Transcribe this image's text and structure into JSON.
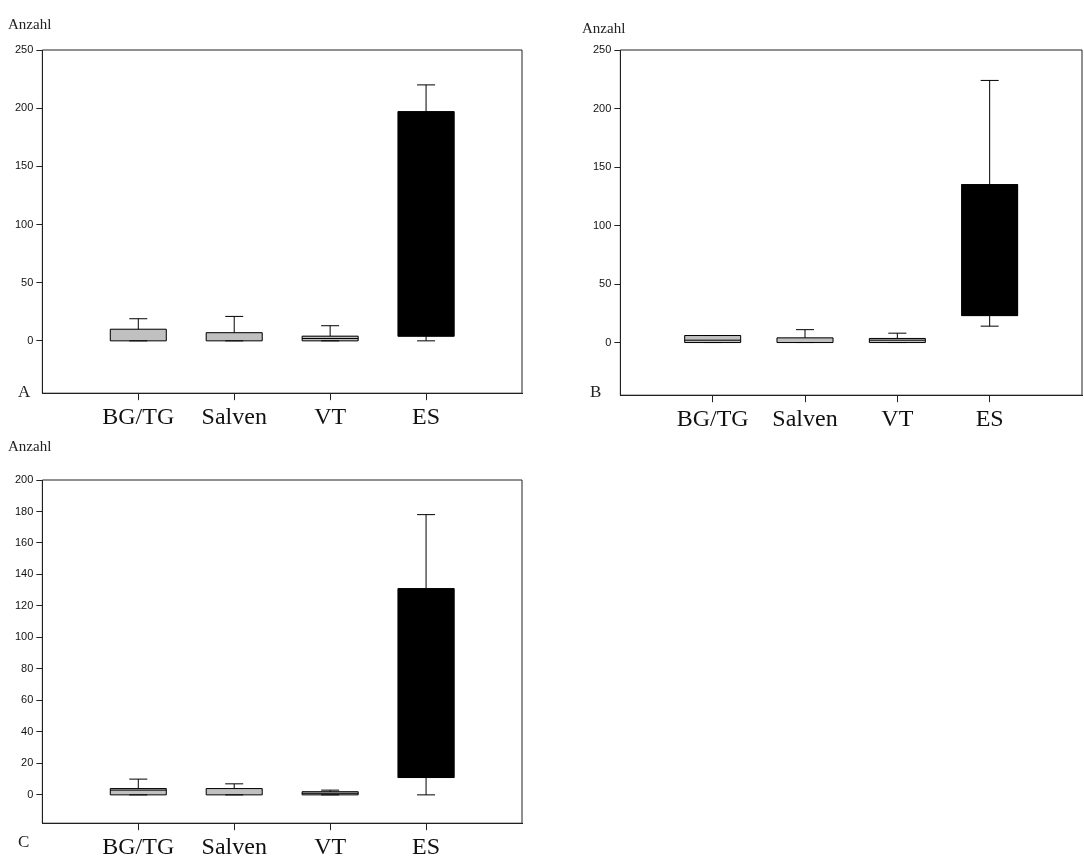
{
  "chart_data": [
    {
      "type": "box",
      "ylabel": "Anzahl",
      "annotations": [
        "A"
      ],
      "categories": [
        "BG/TG",
        "Salven",
        "VT",
        "ES"
      ],
      "colors": [
        "#c0c0c0",
        "#c0c0c0",
        "#c0c0c0",
        "#000000"
      ],
      "ylim": [
        -45,
        250
      ],
      "yticks": [
        0,
        50,
        100,
        150,
        200,
        250
      ],
      "grid": false,
      "boxes": [
        {
          "low": 0,
          "q1": 0,
          "median": 0,
          "q3": 10,
          "high": 19
        },
        {
          "low": 0,
          "q1": 0,
          "median": 0,
          "q3": 7,
          "high": 21
        },
        {
          "low": 0,
          "q1": 0,
          "median": 2,
          "q3": 4,
          "high": 13
        },
        {
          "low": 0,
          "q1": 4,
          "median": 100,
          "q3": 197,
          "high": 220
        }
      ]
    },
    {
      "type": "box",
      "ylabel": "Anzahl",
      "annotations": [
        "B"
      ],
      "categories": [
        "BG/TG",
        "Salven",
        "VT",
        "ES"
      ],
      "colors": [
        "#c0c0c0",
        "#c0c0c0",
        "#c0c0c0",
        "#000000"
      ],
      "ylim": [
        -45,
        250
      ],
      "yticks": [
        0,
        50,
        100,
        150,
        200,
        250
      ],
      "grid": false,
      "boxes": [
        {
          "low": 0,
          "q1": 0,
          "median": 2,
          "q3": 6,
          "high": 6
        },
        {
          "low": 0,
          "q1": 0,
          "median": 4,
          "q3": 4,
          "high": 11
        },
        {
          "low": 0,
          "q1": 0,
          "median": 2,
          "q3": 3.5,
          "high": 8
        },
        {
          "low": 14,
          "q1": 23,
          "median": 70,
          "q3": 135,
          "high": 224
        }
      ]
    },
    {
      "type": "box",
      "ylabel": "Anzahl",
      "annotations": [
        "C"
      ],
      "categories": [
        "BG/TG",
        "Salven",
        "VT",
        "ES"
      ],
      "colors": [
        "#c0c0c0",
        "#c0c0c0",
        "#c0c0c0",
        "#000000"
      ],
      "ylim": [
        -18,
        200
      ],
      "yticks": [
        0,
        20,
        40,
        60,
        80,
        100,
        120,
        140,
        160,
        180,
        200
      ],
      "grid": false,
      "boxes": [
        {
          "low": 0,
          "q1": 0,
          "median": 3,
          "q3": 4,
          "high": 10
        },
        {
          "low": 0,
          "q1": 0,
          "median": 0,
          "q3": 4,
          "high": 7
        },
        {
          "low": 0,
          "q1": 0,
          "median": 1,
          "q3": 2,
          "high": 3
        },
        {
          "low": 0,
          "q1": 11,
          "median": 60,
          "q3": 131,
          "high": 178
        }
      ]
    }
  ]
}
